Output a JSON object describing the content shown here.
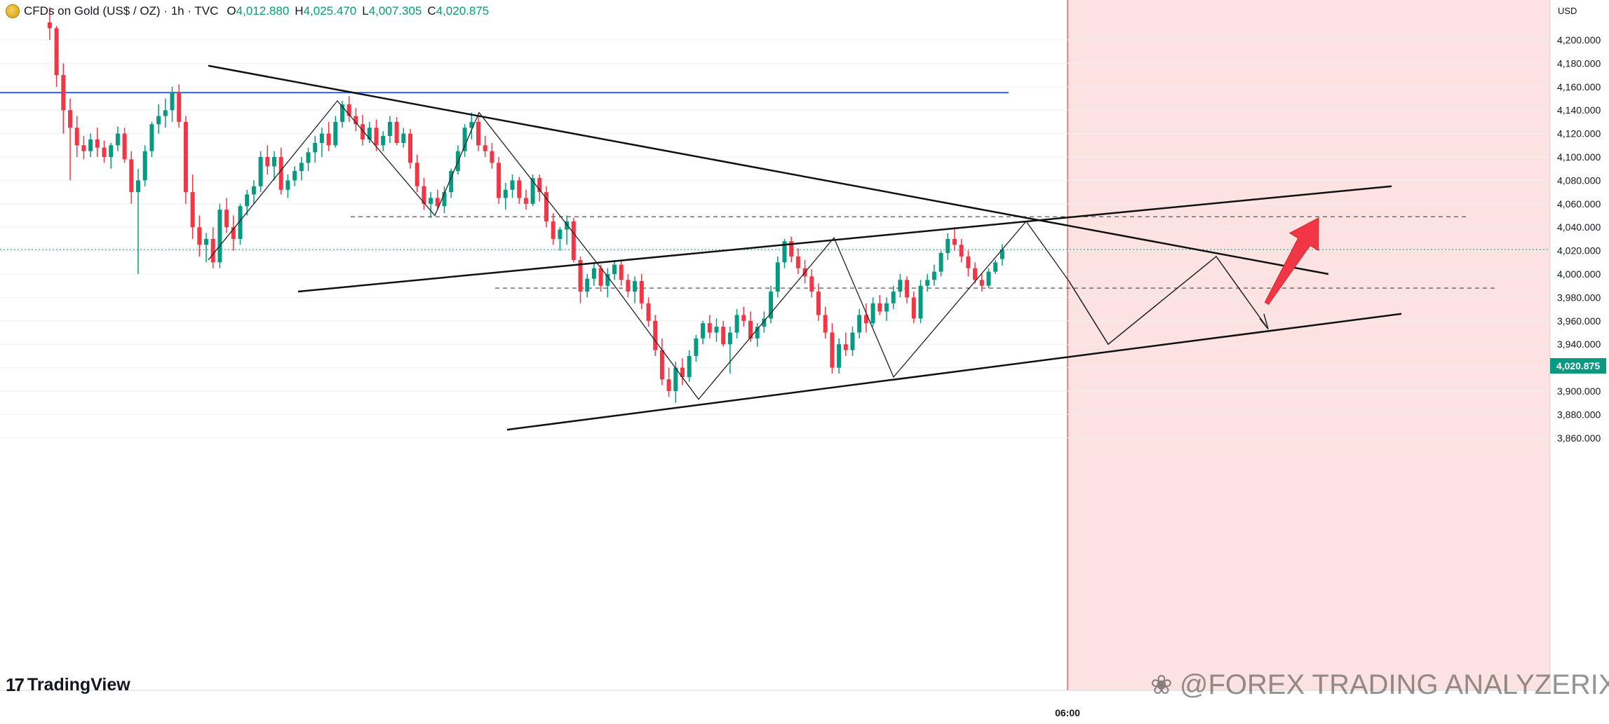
{
  "header": {
    "title": "CFDs on Gold (US$ / OZ) · 1h · TVC",
    "ohlc": [
      {
        "key": "O",
        "value": "4,012.880"
      },
      {
        "key": "H",
        "value": "4,025.470"
      },
      {
        "key": "L",
        "value": "4,007.305"
      },
      {
        "key": "C",
        "value": "4,020.875"
      }
    ]
  },
  "axis": {
    "unit": "USD",
    "current_price_label": "4,020.875",
    "time_label": "06:00"
  },
  "branding": {
    "logo_text": "TradingView",
    "watermark": "@FOREX TRADING ANALYZERIX"
  },
  "colors": {
    "up": "#089981",
    "down": "#f23645",
    "forecast_zone": "#fde2e2",
    "resistance_line": "#2962ff",
    "arrow": "#f23645"
  },
  "chart_data": {
    "type": "candlestick",
    "symbol": "CFDs on Gold (US$ / OZ)",
    "timeframe": "1h",
    "ylim": [
      3840,
      4215
    ],
    "y_ticks": [
      3860,
      3880,
      3900,
      3920,
      3940,
      3960,
      3980,
      4000,
      4020,
      4040,
      4060,
      4080,
      4100,
      4120,
      4140,
      4160,
      4180,
      4200
    ],
    "current_price": 4020.875,
    "horizontal_levels": [
      {
        "price": 4155,
        "style": "solid",
        "color": "#2962ff"
      },
      {
        "price": 4049,
        "style": "dashed"
      },
      {
        "price": 3988,
        "style": "dashed"
      }
    ],
    "candles": [
      [
        4215,
        4228,
        4200,
        4210
      ],
      [
        4210,
        4212,
        4160,
        4170
      ],
      [
        4170,
        4180,
        4120,
        4140
      ],
      [
        4140,
        4150,
        4080,
        4125
      ],
      [
        4125,
        4135,
        4100,
        4110
      ],
      [
        4110,
        4118,
        4098,
        4105
      ],
      [
        4105,
        4120,
        4100,
        4115
      ],
      [
        4115,
        4125,
        4100,
        4108
      ],
      [
        4108,
        4114,
        4095,
        4100
      ],
      [
        4100,
        4112,
        4090,
        4110
      ],
      [
        4110,
        4126,
        4105,
        4120
      ],
      [
        4120,
        4125,
        4095,
        4098
      ],
      [
        4098,
        4105,
        4060,
        4070
      ],
      [
        4070,
        4090,
        4000,
        4080
      ],
      [
        4080,
        4110,
        4075,
        4105
      ],
      [
        4105,
        4130,
        4100,
        4128
      ],
      [
        4128,
        4145,
        4120,
        4135
      ],
      [
        4135,
        4150,
        4125,
        4140
      ],
      [
        4140,
        4160,
        4130,
        4155
      ],
      [
        4155,
        4162,
        4125,
        4130
      ],
      [
        4130,
        4135,
        4060,
        4070
      ],
      [
        4070,
        4085,
        4030,
        4040
      ],
      [
        4040,
        4050,
        4015,
        4025
      ],
      [
        4025,
        4035,
        4010,
        4030
      ],
      [
        4030,
        4040,
        4005,
        4010
      ],
      [
        4010,
        4060,
        4005,
        4055
      ],
      [
        4055,
        4065,
        4035,
        4040
      ],
      [
        4040,
        4050,
        4020,
        4030
      ],
      [
        4030,
        4060,
        4025,
        4058
      ],
      [
        4058,
        4072,
        4050,
        4068
      ],
      [
        4068,
        4080,
        4060,
        4075
      ],
      [
        4075,
        4105,
        4070,
        4100
      ],
      [
        4100,
        4110,
        4085,
        4092
      ],
      [
        4092,
        4105,
        4080,
        4100
      ],
      [
        4100,
        4108,
        4068,
        4072
      ],
      [
        4072,
        4085,
        4065,
        4080
      ],
      [
        4080,
        4092,
        4075,
        4088
      ],
      [
        4088,
        4100,
        4080,
        4095
      ],
      [
        4095,
        4108,
        4088,
        4104
      ],
      [
        4104,
        4118,
        4095,
        4112
      ],
      [
        4112,
        4125,
        4100,
        4120
      ],
      [
        4120,
        4130,
        4105,
        4110
      ],
      [
        4110,
        4135,
        4108,
        4130
      ],
      [
        4130,
        4148,
        4125,
        4145
      ],
      [
        4145,
        4152,
        4130,
        4135
      ],
      [
        4135,
        4142,
        4122,
        4128
      ],
      [
        4128,
        4136,
        4110,
        4115
      ],
      [
        4115,
        4130,
        4112,
        4125
      ],
      [
        4125,
        4132,
        4105,
        4110
      ],
      [
        4110,
        4122,
        4105,
        4118
      ],
      [
        4118,
        4135,
        4112,
        4130
      ],
      [
        4130,
        4134,
        4110,
        4112
      ],
      [
        4112,
        4125,
        4108,
        4120
      ],
      [
        4120,
        4124,
        4090,
        4095
      ],
      [
        4095,
        4102,
        4070,
        4075
      ],
      [
        4075,
        4082,
        4055,
        4060
      ],
      [
        4060,
        4070,
        4048,
        4065
      ],
      [
        4065,
        4072,
        4055,
        4058
      ],
      [
        4058,
        4075,
        4052,
        4070
      ],
      [
        4070,
        4090,
        4065,
        4088
      ],
      [
        4088,
        4110,
        4085,
        4105
      ],
      [
        4105,
        4128,
        4100,
        4125
      ],
      [
        4125,
        4138,
        4115,
        4130
      ],
      [
        4130,
        4136,
        4105,
        4110
      ],
      [
        4110,
        4118,
        4100,
        4105
      ],
      [
        4105,
        4112,
        4090,
        4095
      ],
      [
        4095,
        4100,
        4060,
        4065
      ],
      [
        4065,
        4078,
        4055,
        4072
      ],
      [
        4072,
        4085,
        4065,
        4080
      ],
      [
        4080,
        4083,
        4060,
        4065
      ],
      [
        4065,
        4072,
        4055,
        4060
      ],
      [
        4060,
        4085,
        4058,
        4082
      ],
      [
        4082,
        4085,
        4062,
        4070
      ],
      [
        4070,
        4075,
        4040,
        4045
      ],
      [
        4045,
        4052,
        4025,
        4030
      ],
      [
        4030,
        4040,
        4020,
        4038
      ],
      [
        4038,
        4050,
        4025,
        4045
      ],
      [
        4045,
        4048,
        4010,
        4012
      ],
      [
        4012,
        4015,
        3975,
        3985
      ],
      [
        3985,
        4000,
        3980,
        3996
      ],
      [
        3996,
        4010,
        3990,
        4005
      ],
      [
        4005,
        4008,
        3985,
        3990
      ],
      [
        3990,
        4005,
        3980,
        4000
      ],
      [
        4000,
        4012,
        3995,
        4008
      ],
      [
        4008,
        4012,
        3990,
        3995
      ],
      [
        3995,
        4000,
        3980,
        3985
      ],
      [
        3985,
        3998,
        3975,
        3994
      ],
      [
        3994,
        4000,
        3970,
        3975
      ],
      [
        3975,
        3980,
        3955,
        3960
      ],
      [
        3960,
        3965,
        3930,
        3935
      ],
      [
        3935,
        3945,
        3905,
        3910
      ],
      [
        3910,
        3920,
        3895,
        3900
      ],
      [
        3900,
        3925,
        3890,
        3920
      ],
      [
        3920,
        3928,
        3905,
        3912
      ],
      [
        3912,
        3935,
        3908,
        3930
      ],
      [
        3930,
        3948,
        3925,
        3945
      ],
      [
        3945,
        3960,
        3940,
        3958
      ],
      [
        3958,
        3965,
        3945,
        3950
      ],
      [
        3950,
        3962,
        3942,
        3955
      ],
      [
        3955,
        3960,
        3938,
        3940
      ],
      [
        3940,
        3955,
        3915,
        3950
      ],
      [
        3950,
        3970,
        3945,
        3965
      ],
      [
        3965,
        3972,
        3955,
        3960
      ],
      [
        3960,
        3968,
        3942,
        3945
      ],
      [
        3945,
        3958,
        3938,
        3955
      ],
      [
        3955,
        3968,
        3950,
        3962
      ],
      [
        3962,
        3990,
        3958,
        3985
      ],
      [
        3985,
        4015,
        3980,
        4010
      ],
      [
        4010,
        4030,
        4005,
        4028
      ],
      [
        4028,
        4032,
        4010,
        4015
      ],
      [
        4015,
        4022,
        4000,
        4005
      ],
      [
        4005,
        4012,
        3992,
        3998
      ],
      [
        3998,
        4004,
        3980,
        3985
      ],
      [
        3985,
        3992,
        3960,
        3965
      ],
      [
        3965,
        3972,
        3945,
        3950
      ],
      [
        3950,
        3958,
        3915,
        3920
      ],
      [
        3920,
        3945,
        3915,
        3940
      ],
      [
        3940,
        3950,
        3930,
        3935
      ],
      [
        3935,
        3955,
        3930,
        3950
      ],
      [
        3950,
        3970,
        3945,
        3965
      ],
      [
        3965,
        3975,
        3950,
        3958
      ],
      [
        3958,
        3980,
        3955,
        3975
      ],
      [
        3975,
        3982,
        3965,
        3968
      ],
      [
        3968,
        3980,
        3960,
        3975
      ],
      [
        3975,
        3990,
        3970,
        3985
      ],
      [
        3985,
        4000,
        3980,
        3995
      ],
      [
        3995,
        3998,
        3975,
        3980
      ],
      [
        3980,
        3985,
        3958,
        3962
      ],
      [
        3962,
        3995,
        3958,
        3990
      ],
      [
        3990,
        4000,
        3985,
        3995
      ],
      [
        3995,
        4008,
        3990,
        4002
      ],
      [
        4002,
        4020,
        3998,
        4018
      ],
      [
        4018,
        4035,
        4012,
        4030
      ],
      [
        4030,
        4040,
        4020,
        4025
      ],
      [
        4025,
        4030,
        4010,
        4015
      ],
      [
        4015,
        4020,
        3998,
        4005
      ],
      [
        4005,
        4010,
        3992,
        3995
      ],
      [
        3995,
        4000,
        3985,
        3990
      ],
      [
        3990,
        4005,
        3988,
        4002
      ],
      [
        4002,
        4012,
        4000,
        4010
      ],
      [
        4012.88,
        4025.47,
        4007.305,
        4020.875
      ]
    ],
    "annotations": [
      "descending trendline from ~4178 to ~4000",
      "rising channel top from ~3985 to ~4075",
      "rising channel bottom from ~3867 to ~3966",
      "projected zigzag path to ~3940 then ~4015 then ~3953",
      "red up-arrow targeting ~4048",
      "highlighted forecast zone after the 06:00 marker"
    ]
  }
}
